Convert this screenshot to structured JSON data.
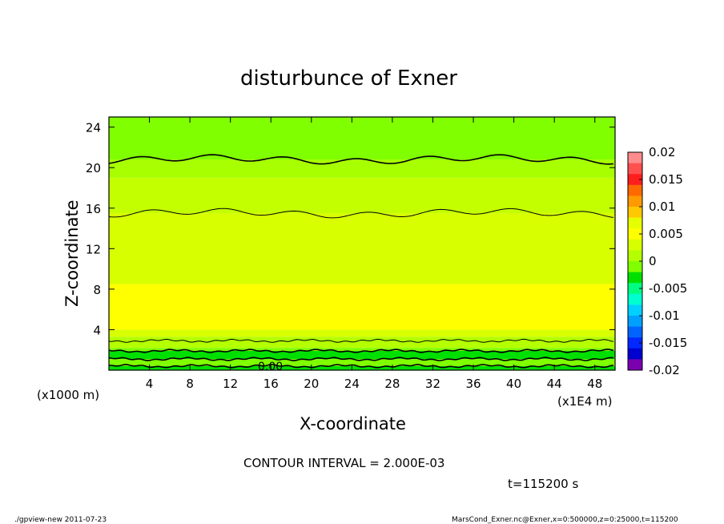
{
  "chart_data": {
    "type": "contour",
    "title": "disturbunce of Exner",
    "xlabel": "X-coordinate",
    "ylabel": "Z-coordinate",
    "x_unit": "(x1E4 m)",
    "y_unit": "(x1000 m)",
    "xlim": [
      0,
      50
    ],
    "ylim": [
      0,
      25
    ],
    "x_ticks": [
      4,
      8,
      12,
      16,
      20,
      24,
      28,
      32,
      36,
      40,
      44,
      48
    ],
    "y_ticks": [
      4,
      8,
      12,
      16,
      20,
      24
    ],
    "contour_interval_text": "CONTOUR INTERVAL = 2.000E-03",
    "time_text": "t=115200 s",
    "contour_label": "0.00",
    "colorbar": {
      "ticks": [
        "0.02",
        "0.015",
        "0.01",
        "0.005",
        "0",
        "-0.005",
        "-0.01",
        "-0.015",
        "-0.02"
      ],
      "colors": [
        "#ff8c8c",
        "#ff5050",
        "#ff1e1e",
        "#ff6a00",
        "#ff9a00",
        "#ffc800",
        "#e6ff00",
        "#ffff00",
        "#d8ff00",
        "#b4ff00",
        "#80ff00",
        "#00e000",
        "#00ff80",
        "#00ffd0",
        "#00d0ff",
        "#00a0ff",
        "#0064ff",
        "#0028ff",
        "#0000d0",
        "#7b00b0"
      ]
    },
    "bands": [
      {
        "zmin": 0.0,
        "zmax": 0.4,
        "color": "#00e000"
      },
      {
        "zmin": 0.4,
        "zmax": 1.1,
        "color": "#80ff00"
      },
      {
        "zmin": 1.1,
        "zmax": 1.9,
        "color": "#00e000"
      },
      {
        "zmin": 1.9,
        "zmax": 2.2,
        "color": "#80ff00"
      },
      {
        "zmin": 2.2,
        "zmax": 3.3,
        "color": "#b4ff00"
      },
      {
        "zmin": 3.3,
        "zmax": 4.0,
        "color": "#d8ff00"
      },
      {
        "zmin": 4.0,
        "zmax": 8.5,
        "color": "#ffff00"
      },
      {
        "zmin": 8.5,
        "zmax": 15.5,
        "color": "#d8ff00"
      },
      {
        "zmin": 15.5,
        "zmax": 19.0,
        "color": "#c4ff00"
      },
      {
        "zmin": 19.0,
        "zmax": 20.8,
        "color": "#a8ff00"
      },
      {
        "zmin": 20.8,
        "zmax": 25.0,
        "color": "#80ff00"
      }
    ],
    "contours": [
      {
        "z": 0.4,
        "width": 1.6
      },
      {
        "z": 1.1,
        "width": 1.6
      },
      {
        "z": 1.9,
        "width": 1.6
      },
      {
        "z": 2.9,
        "width": 1.0
      },
      {
        "z": 15.5,
        "width": 1.0
      },
      {
        "z": 20.8,
        "width": 1.6
      }
    ]
  },
  "footer": {
    "left": "./gpview-new   2011-07-23",
    "right": "MarsCond_Exner.nc@Exner,x=0:500000,z=0:25000,t=115200"
  }
}
